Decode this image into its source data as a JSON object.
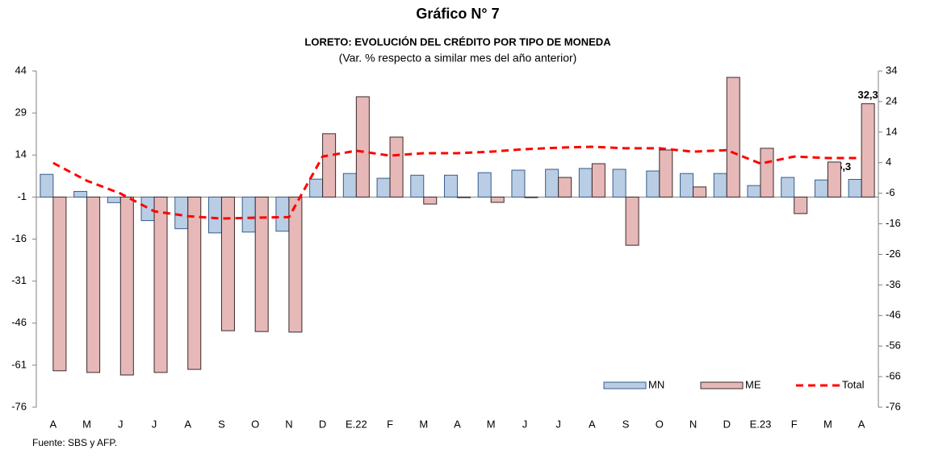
{
  "chart_data": {
    "type": "bar",
    "title": "Gráfico N° 7",
    "subtitle": "LORETO: EVOLUCIÓN DEL CRÉDITO POR TIPO DE MONEDA",
    "note": "(Var. % respecto a similar mes del año anterior)",
    "source": "Fuente: SBS y AFP.",
    "categories": [
      "A",
      "M",
      "J",
      "J",
      "A",
      "S",
      "O",
      "N",
      "D",
      "E.22",
      "F",
      "M",
      "A",
      "M",
      "J",
      "J",
      "A",
      "S",
      "O",
      "N",
      "D",
      "E.23",
      "F",
      "M",
      "A"
    ],
    "series": [
      {
        "name": "MN",
        "type": "bar",
        "axis": "y",
        "color": "#b9cde5",
        "stroke": "#385d8a",
        "values": [
          7.1,
          1.0,
          -3.0,
          -9.4,
          -12.3,
          -13.8,
          -13.5,
          -13.2,
          5.4,
          7.4,
          5.7,
          6.8,
          6.8,
          7.7,
          8.6,
          8.9,
          9.2,
          8.9,
          8.3,
          7.4,
          7.4,
          3.1,
          6.0,
          5.1,
          5.3
        ],
        "value_labels": [
          null,
          null,
          null,
          null,
          null,
          null,
          null,
          null,
          null,
          null,
          null,
          null,
          null,
          null,
          null,
          null,
          null,
          null,
          null,
          null,
          null,
          null,
          null,
          null,
          "5,3"
        ]
      },
      {
        "name": "ME",
        "type": "bar",
        "axis": "y",
        "color": "#e6b9b8",
        "stroke": "#3a2a2a",
        "values": [
          -63.0,
          -63.6,
          -64.5,
          -63.6,
          -62.5,
          -48.7,
          -49.0,
          -49.2,
          21.6,
          34.8,
          20.4,
          -3.5,
          -1.2,
          -2.9,
          -1.2,
          6.0,
          10.9,
          -18.2,
          15.8,
          2.6,
          41.7,
          16.4,
          -6.9,
          11.5,
          32.3
        ],
        "value_labels": [
          null,
          null,
          null,
          null,
          null,
          null,
          null,
          null,
          null,
          null,
          null,
          null,
          null,
          null,
          null,
          null,
          null,
          null,
          null,
          null,
          null,
          null,
          null,
          null,
          "32,3"
        ]
      },
      {
        "name": "Total",
        "type": "line",
        "axis": "y2",
        "color": "#ff0000",
        "values": [
          3.9,
          -1.9,
          -6.1,
          -11.9,
          -13.5,
          -14.3,
          -14.0,
          -13.8,
          6.0,
          7.9,
          6.3,
          7.1,
          7.1,
          7.6,
          8.4,
          8.9,
          9.2,
          8.7,
          8.7,
          7.6,
          8.1,
          3.7,
          6.0,
          5.5,
          5.5
        ]
      }
    ],
    "ylim": [
      -76,
      44
    ],
    "yticks": [
      44,
      29,
      14,
      -1,
      -16,
      -31,
      -46,
      -61,
      -76
    ],
    "y2lim": [
      -76,
      34
    ],
    "y2ticks": [
      34,
      24,
      14,
      4,
      -6,
      -16,
      -26,
      -36,
      -46,
      -56,
      -66,
      -76
    ],
    "x_axis_crosses": -1,
    "legend": "bottom-right"
  }
}
